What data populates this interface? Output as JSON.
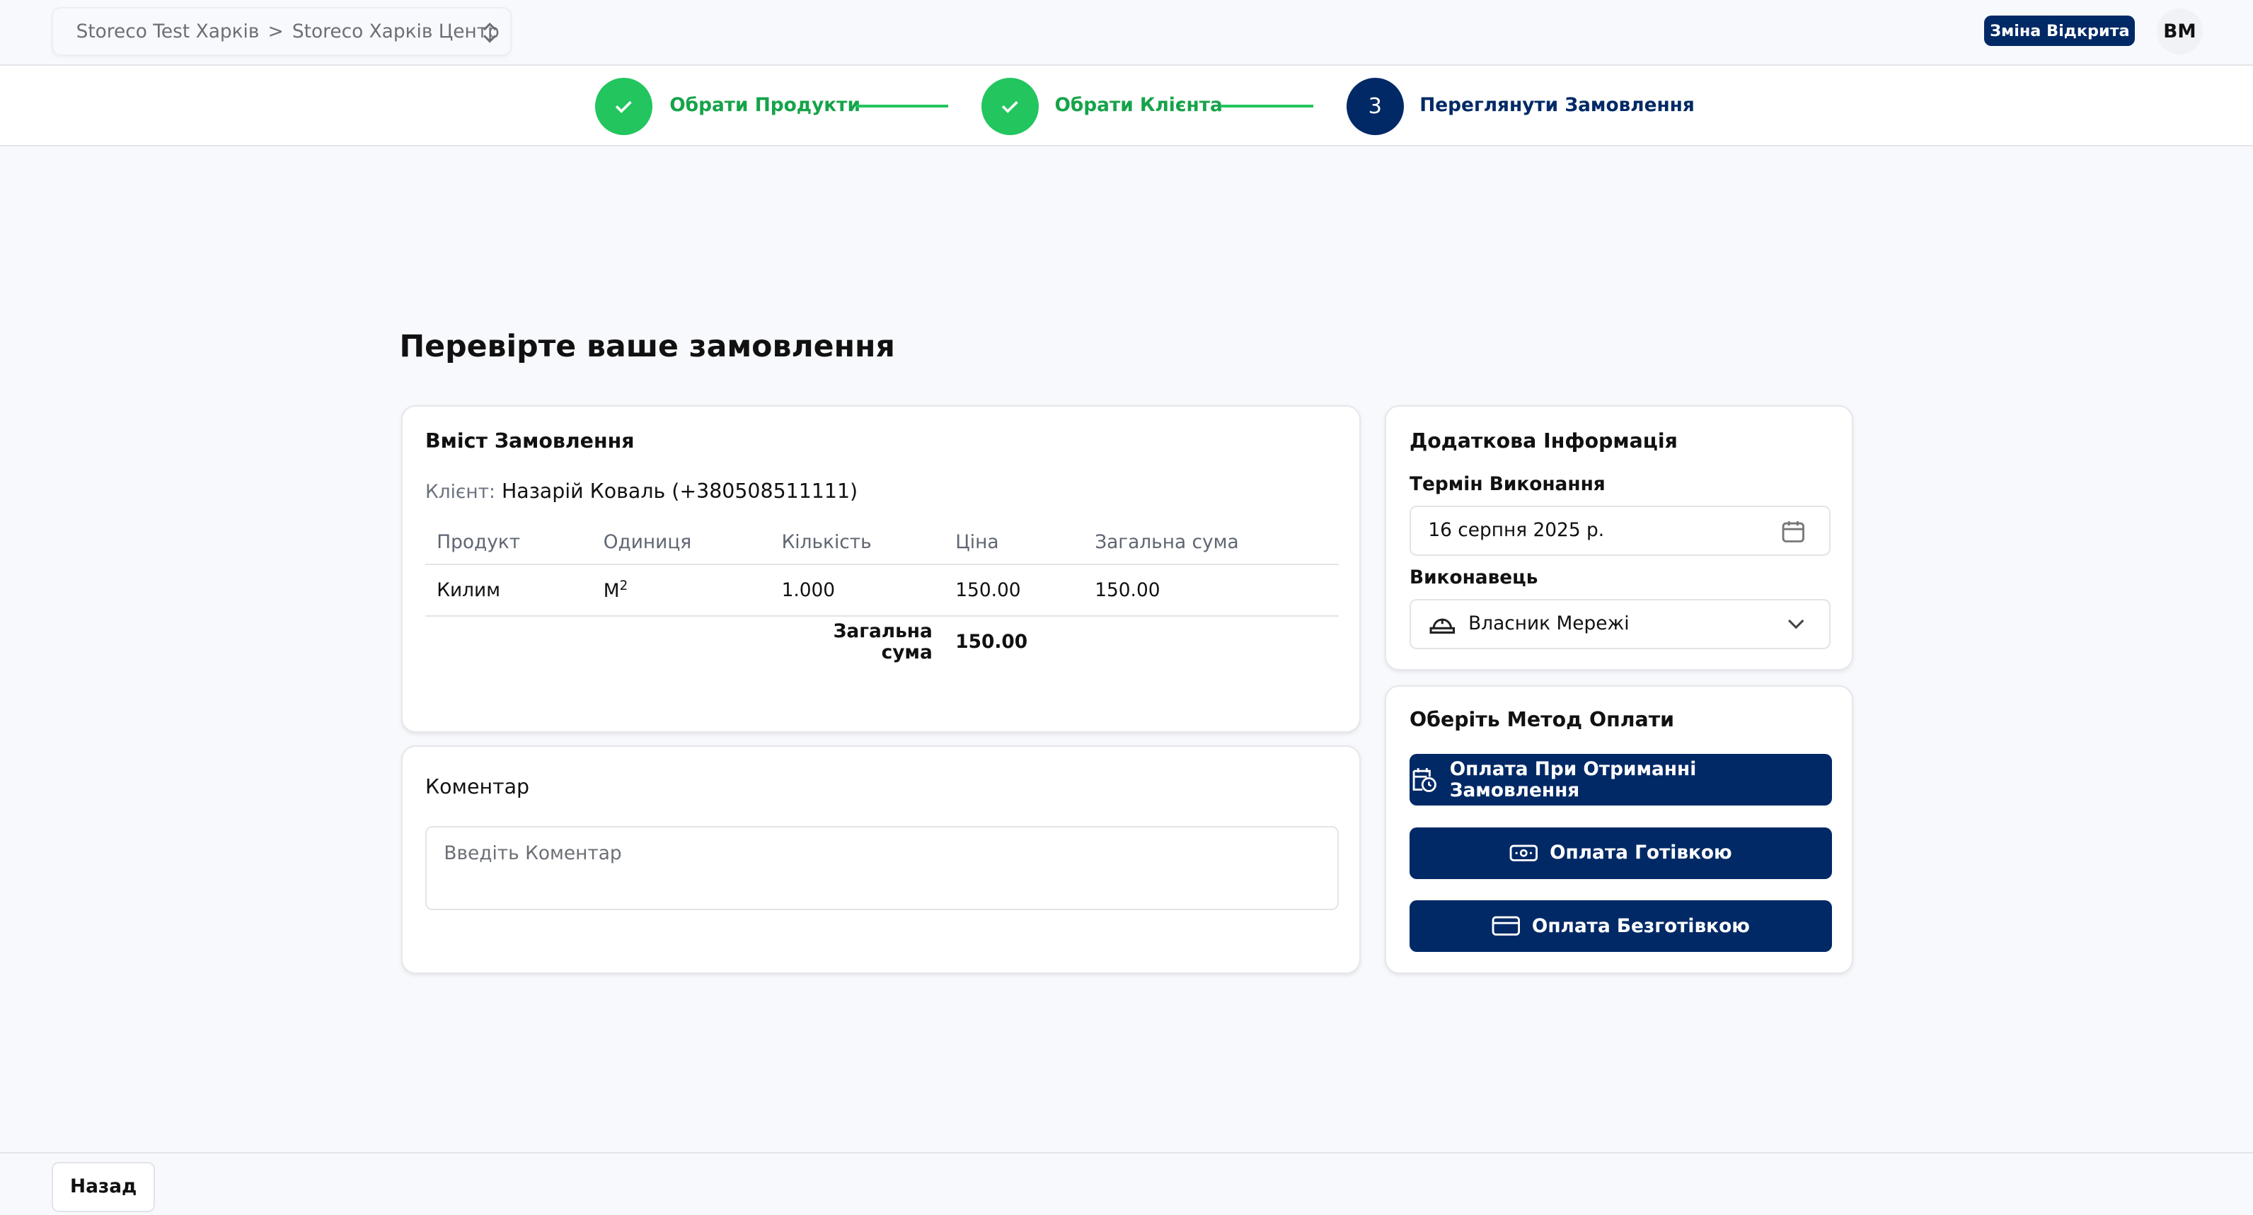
{
  "header": {
    "breadcrumb_org": "Storeco Test Харків",
    "breadcrumb_sep": ">",
    "breadcrumb_store": "Storeco Харків Центр",
    "shift_badge": "Зміна Відкрита",
    "avatar": "ВМ"
  },
  "stepper": {
    "steps": [
      {
        "label": "Обрати Продукти",
        "status": "done"
      },
      {
        "label": "Обрати Клієнта",
        "status": "done"
      },
      {
        "label": "Переглянути Замовлення",
        "status": "current",
        "number": "3"
      }
    ]
  },
  "page_title": "Перевірте ваше замовлення",
  "order": {
    "title": "Вміст Замовлення",
    "client_label": "Клієнт:",
    "client_value": "Назарій Коваль (+380508511111)",
    "columns": [
      "Продукт",
      "Одиниця",
      "Кількість",
      "Ціна",
      "Загальна сума"
    ],
    "rows": [
      {
        "product": "Килим",
        "unit": "М",
        "unit_sup": "2",
        "qty": "1.000",
        "price": "150.00",
        "total": "150.00"
      }
    ],
    "total_label": "Загальна сума",
    "total_value": "150.00"
  },
  "comment": {
    "title": "Коментар",
    "placeholder": "Введіть Коментар"
  },
  "additional": {
    "title": "Додаткова Інформація",
    "deadline_label": "Термін Виконання",
    "deadline_value": "16 серпня 2025 р.",
    "executor_label": "Виконавець",
    "executor_value": "Власник Мережі"
  },
  "payment": {
    "title": "Оберіть Метод Оплати",
    "options": [
      "Оплата При Отриманні Замовлення",
      "Оплата Готівкою",
      "Оплата Безготівкою"
    ]
  },
  "footer": {
    "back": "Назад"
  },
  "colors": {
    "navy": "#002966",
    "green": "#22c55e"
  }
}
